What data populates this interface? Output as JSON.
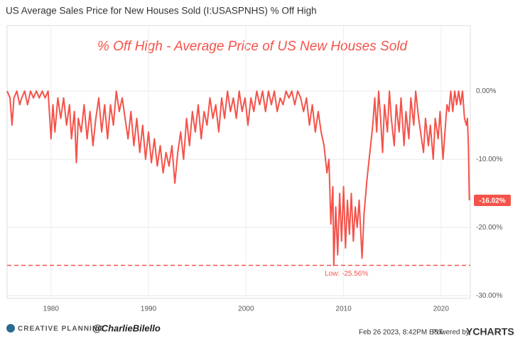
{
  "chart_data": {
    "type": "line",
    "title": "US Average Sales Price for New Houses Sold (I:USASPNHS) % Off High",
    "annotation": "% Off High - Average Price of US New Houses Sold",
    "color": "#f4534a",
    "x": [
      1975.5,
      1975.8,
      1976.0,
      1976.2,
      1976.5,
      1976.8,
      1977.0,
      1977.3,
      1977.6,
      1977.9,
      1978.2,
      1978.5,
      1978.8,
      1979.1,
      1979.4,
      1979.7,
      1980.0,
      1980.2,
      1980.4,
      1980.7,
      1981.0,
      1981.3,
      1981.6,
      1981.9,
      1982.1,
      1982.4,
      1982.6,
      1982.8,
      1983.1,
      1983.4,
      1983.7,
      1984.0,
      1984.3,
      1984.6,
      1984.9,
      1985.2,
      1985.5,
      1985.8,
      1986.1,
      1986.4,
      1986.7,
      1987.0,
      1987.3,
      1987.6,
      1987.9,
      1988.2,
      1988.5,
      1988.8,
      1989.1,
      1989.4,
      1989.7,
      1990.0,
      1990.3,
      1990.6,
      1990.9,
      1991.2,
      1991.5,
      1991.8,
      1992.1,
      1992.4,
      1992.7,
      1993.0,
      1993.3,
      1993.6,
      1993.9,
      1994.2,
      1994.5,
      1994.8,
      1995.1,
      1995.4,
      1995.7,
      1996.0,
      1996.3,
      1996.6,
      1996.9,
      1997.2,
      1997.5,
      1997.8,
      1998.1,
      1998.4,
      1998.7,
      1999.0,
      1999.3,
      1999.6,
      1999.9,
      2000.2,
      2000.5,
      2000.8,
      2001.1,
      2001.4,
      2001.7,
      2002.0,
      2002.3,
      2002.6,
      2002.9,
      2003.2,
      2003.5,
      2003.8,
      2004.1,
      2004.4,
      2004.7,
      2005.0,
      2005.3,
      2005.6,
      2005.9,
      2006.2,
      2006.5,
      2006.8,
      2007.1,
      2007.4,
      2007.7,
      2008.0,
      2008.3,
      2008.5,
      2008.7,
      2008.9,
      2009.0,
      2009.2,
      2009.4,
      2009.6,
      2009.8,
      2010.0,
      2010.2,
      2010.4,
      2010.6,
      2010.8,
      2011.0,
      2011.2,
      2011.4,
      2011.6,
      2011.9,
      2012.1,
      2012.4,
      2012.7,
      2013.0,
      2013.2,
      2013.4,
      2013.6,
      2013.8,
      2014.0,
      2014.2,
      2014.5,
      2014.7,
      2014.9,
      2015.2,
      2015.4,
      2015.7,
      2015.9,
      2016.2,
      2016.4,
      2016.7,
      2016.9,
      2017.2,
      2017.4,
      2017.7,
      2017.9,
      2018.2,
      2018.4,
      2018.7,
      2018.9,
      2019.2,
      2019.4,
      2019.7,
      2019.9,
      2020.2,
      2020.4,
      2020.6,
      2020.8,
      2021.0,
      2021.2,
      2021.4,
      2021.6,
      2021.8,
      2022.0,
      2022.2,
      2022.4,
      2022.6,
      2022.7,
      2022.8,
      2022.9
    ],
    "values": [
      0,
      -1,
      -5,
      -1,
      0,
      -2,
      -1,
      0,
      -2,
      0,
      -1,
      0,
      -1,
      0,
      -1,
      0,
      -7,
      -2,
      -6,
      -1,
      -4,
      -1,
      -5,
      -2,
      -7,
      -3,
      -10.5,
      -4,
      -6,
      -2,
      -7,
      -3,
      -8,
      -4,
      -1,
      -6,
      -2,
      -7,
      -2,
      -5,
      0,
      -3,
      -1,
      -4,
      -7,
      -3,
      -8,
      -4,
      -9,
      -5,
      -10,
      -6,
      -10.5,
      -7,
      -11,
      -8,
      -12,
      -9,
      -11,
      -8,
      -13.5,
      -9,
      -6,
      -10,
      -4,
      -8,
      -3,
      -6,
      -2,
      -7,
      -3,
      -5,
      -1,
      -4,
      -2,
      -6,
      -1,
      -4,
      0,
      -3,
      -1,
      -4,
      0,
      -3,
      -1,
      -5,
      -1,
      -3,
      0,
      -2,
      0,
      -3,
      0,
      -2,
      0,
      -3,
      -1,
      -2,
      0,
      -1,
      0,
      -2,
      0,
      -1,
      -3,
      -1,
      -5,
      -2,
      -6,
      -3,
      -6,
      -8,
      -12,
      -10,
      -19.5,
      -14,
      -25.56,
      -17,
      -24,
      -15,
      -22,
      -14,
      -23,
      -16,
      -21,
      -15,
      -22,
      -17,
      -20,
      -16,
      -24.5,
      -18,
      -13,
      -9,
      -5,
      -1,
      -6,
      0,
      -4,
      -9,
      -2,
      -6,
      0,
      -4,
      -8,
      -2,
      -6,
      -1,
      -8,
      -3,
      -7,
      -1,
      -5,
      0,
      -4,
      -6,
      -9,
      -4,
      -8,
      -5,
      -10,
      -4,
      -7,
      -3,
      -10,
      -6,
      -2,
      -3,
      0,
      -3,
      0,
      -2,
      0,
      -2,
      0,
      -4,
      -5,
      -4,
      -8,
      -16.02
    ],
    "end_label": "-16.02%",
    "low_line": {
      "value": -25.56,
      "label": "Low: -25.56%"
    },
    "xlim": [
      1975.5,
      2023.0
    ],
    "xticks": [
      1980,
      1990,
      2000,
      2010,
      2020
    ],
    "ylim": [
      -30.4,
      9.6
    ],
    "yticks": [
      {
        "value": 0,
        "label": "0.00%"
      },
      {
        "value": -10,
        "label": "-10.00%"
      },
      {
        "value": -20,
        "label": "-20.00%"
      },
      {
        "value": -30,
        "label": "-30.00%"
      }
    ],
    "grid": true
  },
  "footer": {
    "brand": "CREATIVE PLANNING",
    "handle": "@CharlieBilello",
    "timestamp": "Feb 26 2023, 8:42PM EST.",
    "powered": "Powered by",
    "provider": "YCHARTS"
  }
}
